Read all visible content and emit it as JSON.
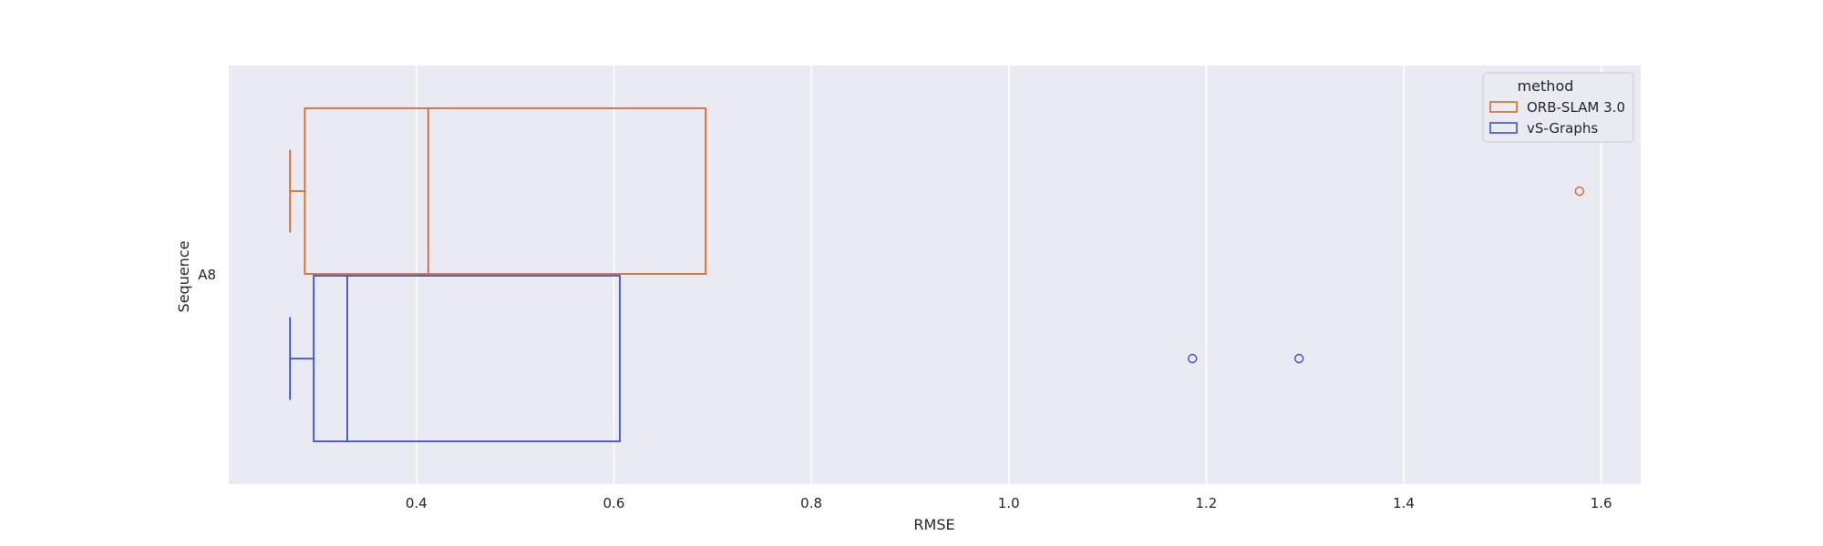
{
  "chart_data": {
    "type": "box",
    "orientation": "horizontal",
    "xlabel": "RMSE",
    "ylabel": "Sequence",
    "categories": [
      "A8"
    ],
    "xlim": [
      0.21,
      1.64
    ],
    "xticks": [
      0.4,
      0.6,
      0.8,
      1.0,
      1.2,
      1.4,
      1.6
    ],
    "xtick_labels": [
      "0.4",
      "0.6",
      "0.8",
      "1.0",
      "1.2",
      "1.4",
      "1.6"
    ],
    "grid": true,
    "legend": {
      "title": "method",
      "position": "top-right"
    },
    "series": [
      {
        "name": "ORB-SLAM 3.0",
        "color": "#d9692a",
        "boxes": [
          {
            "category": "A8",
            "whisker_low": 0.272,
            "q1": 0.287,
            "median": 0.412,
            "q3": 0.693,
            "whisker_high": 0.693,
            "outliers": [
              1.578
            ]
          }
        ]
      },
      {
        "name": "vS-Graphs",
        "color": "#3b4fd1",
        "boxes": [
          {
            "category": "A8",
            "whisker_low": 0.272,
            "q1": 0.296,
            "median": 0.33,
            "q3": 0.606,
            "whisker_high": 0.606,
            "outliers": [
              1.186,
              1.294
            ]
          }
        ]
      }
    ]
  }
}
